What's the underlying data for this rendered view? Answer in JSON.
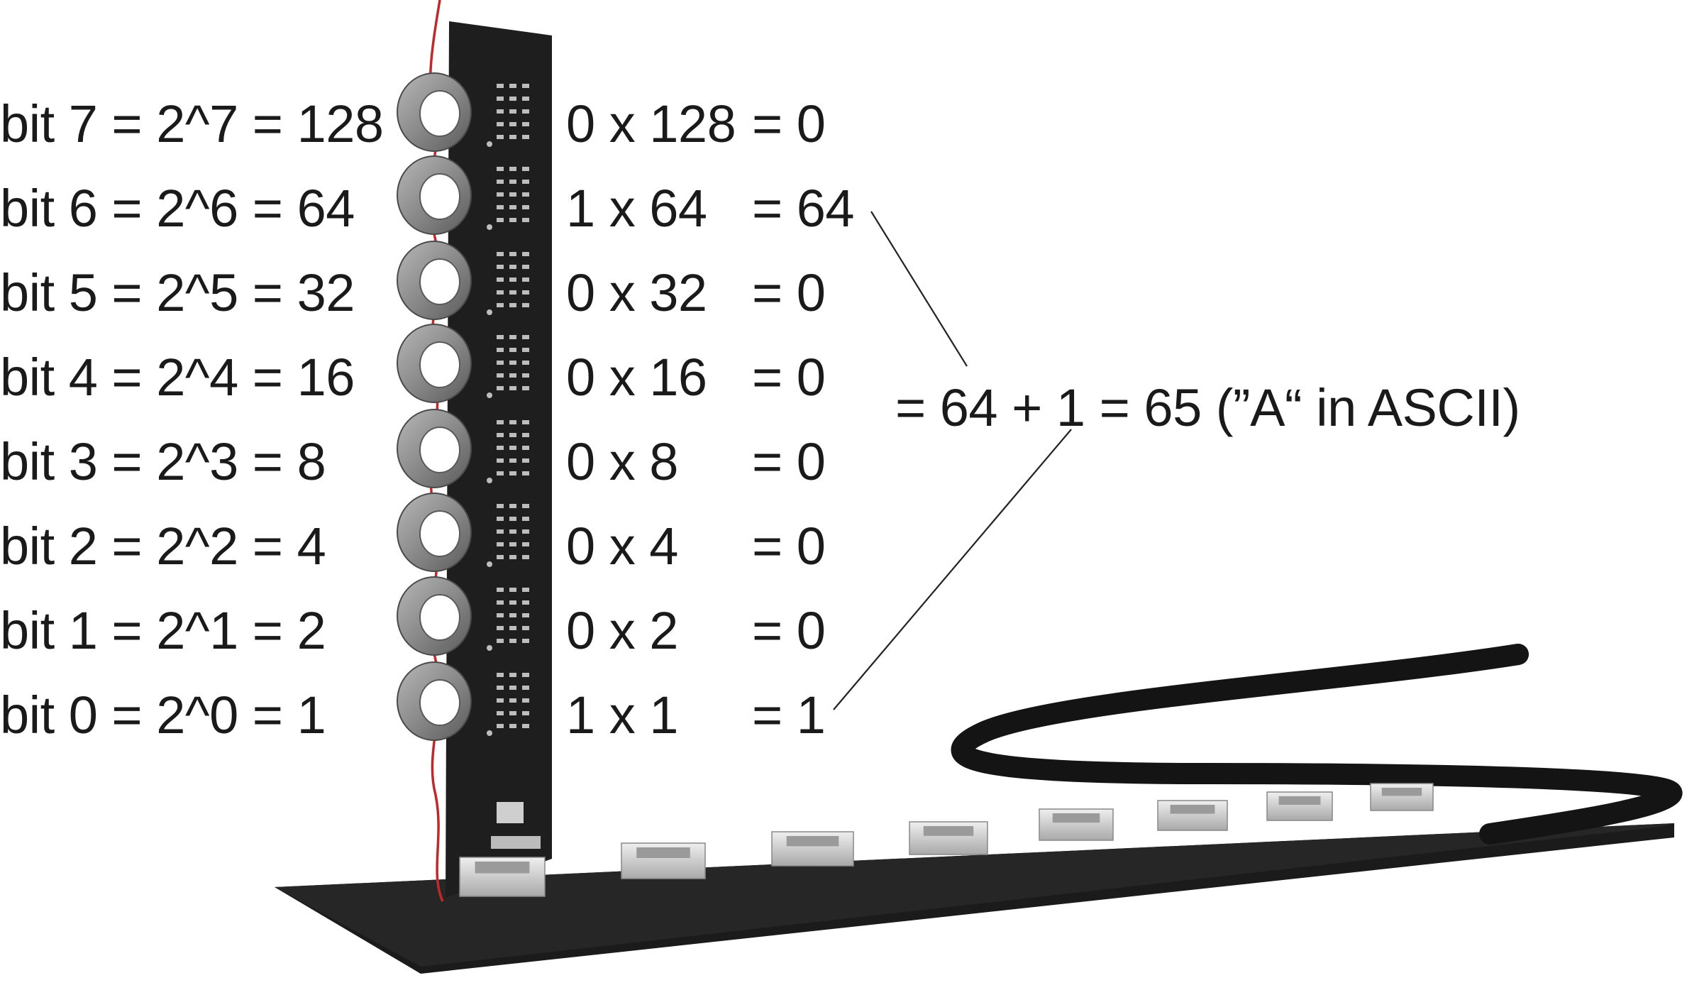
{
  "bits": [
    {
      "label": "bit 7 = 2^7 = 128",
      "multiplication": "0 x 128",
      "result": "= 0"
    },
    {
      "label": "bit 6 = 2^6 = 64",
      "multiplication": "1 x 64",
      "result": "= 64"
    },
    {
      "label": "bit 5 = 2^5 = 32",
      "multiplication": "0 x 32",
      "result": "= 0"
    },
    {
      "label": "bit 4 = 2^4 = 16",
      "multiplication": "0 x 16",
      "result": "= 0"
    },
    {
      "label": "bit 3 = 2^3 = 8",
      "multiplication": "0 x 8",
      "result": "= 0"
    },
    {
      "label": "bit 2 = 2^2 = 4",
      "multiplication": "0 x 4",
      "result": "= 0"
    },
    {
      "label": "bit 1 = 2^1 = 2",
      "multiplication": "0 x 2",
      "result": "= 0"
    },
    {
      "label": "bit 0 = 2^0 = 1",
      "multiplication": "1 x 1",
      "result": "= 1"
    }
  ],
  "sum_text": "= 64 + 1 = 65 (”A“ in ASCII)",
  "colors": {
    "board": "#1b1b1b",
    "core": "#8e8e8e",
    "wire": "#c0282a",
    "connector": "#d8d8d8",
    "cable": "#141414"
  }
}
